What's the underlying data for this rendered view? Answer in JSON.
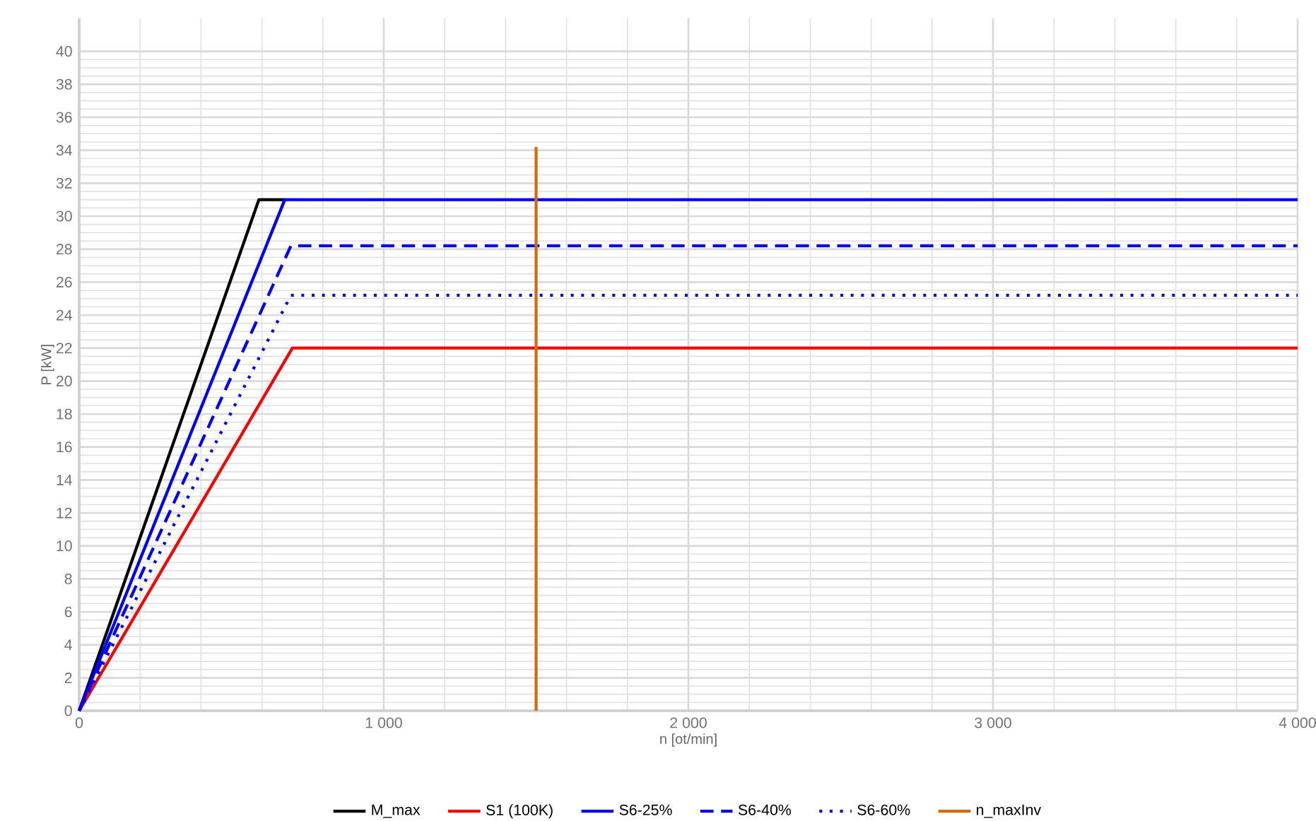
{
  "chart_data": {
    "type": "line",
    "xlabel": "n [ot/min]",
    "ylabel": "P [kW]",
    "xlim": [
      0,
      4000
    ],
    "ylim": [
      0,
      42
    ],
    "xticks": [
      0,
      {
        "value": 1000,
        "label": "1 000"
      },
      {
        "value": 2000,
        "label": "2 000"
      },
      {
        "value": 3000,
        "label": "3 000"
      },
      {
        "value": 4000,
        "label": "4 000"
      }
    ],
    "yticks": [
      0,
      2,
      4,
      6,
      8,
      10,
      12,
      14,
      16,
      18,
      20,
      22,
      24,
      26,
      28,
      30,
      32,
      34,
      36,
      38,
      40
    ],
    "grid": true,
    "legend": "bottom",
    "marker": "none",
    "series": [
      {
        "name": "M_max",
        "color": "#000000",
        "line_style": "solid",
        "x": [
          0,
          590,
          675
        ],
        "values": [
          0,
          31,
          31
        ]
      },
      {
        "name": "S1 (100K)",
        "color": "#ff0000",
        "line_style": "solid",
        "x": [
          0,
          700,
          4000
        ],
        "values": [
          0,
          22,
          22
        ]
      },
      {
        "name": "S6-25%",
        "color": "#0000ff",
        "line_style": "solid",
        "x": [
          0,
          675,
          4000
        ],
        "values": [
          0,
          31,
          31
        ]
      },
      {
        "name": "S6-40%",
        "color": "#0000ff",
        "line_style": "dashed",
        "x": [
          0,
          695,
          4000
        ],
        "values": [
          0,
          28.2,
          28.2
        ]
      },
      {
        "name": "S6-60%",
        "color": "#0000ff",
        "line_style": "dotted",
        "x": [
          0,
          695,
          4000
        ],
        "values": [
          0,
          25.2,
          25.2
        ]
      },
      {
        "name": "n_maxInv",
        "color": "#d46a0a",
        "line_style": "solid",
        "x": [
          1500,
          1500
        ],
        "values": [
          0,
          34.2
        ]
      }
    ]
  }
}
